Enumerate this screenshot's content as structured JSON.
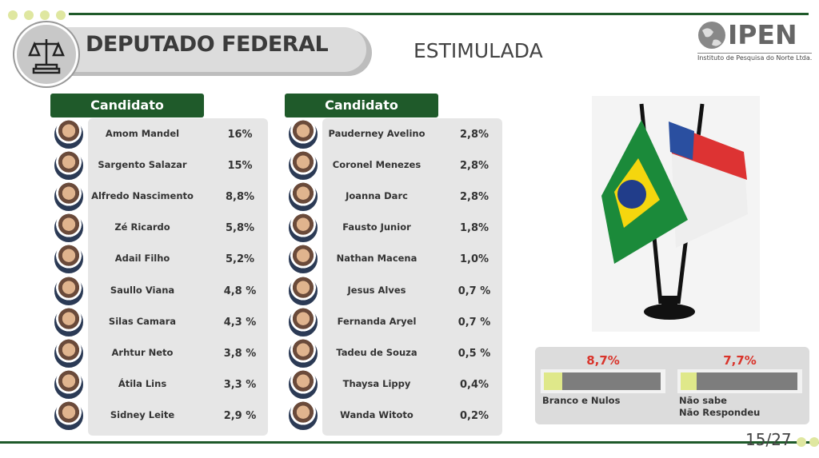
{
  "header": {
    "title": "DEPUTADO FEDERAL",
    "subtitle": "ESTIMULADA",
    "logo": "IPEN",
    "logo_caption": "Instituto de Pesquisa do Norte Ltda."
  },
  "tables": [
    {
      "header": "Candidato",
      "rows": [
        [
          "Amom Mandel",
          "16%"
        ],
        [
          "Sargento Salazar",
          "15%"
        ],
        [
          "Alfredo Nascimento",
          "8,8%"
        ],
        [
          "Zé Ricardo",
          "5,8%"
        ],
        [
          "Adail Filho",
          "5,2%"
        ],
        [
          "Saullo Viana",
          "4,8 %"
        ],
        [
          "Silas Camara",
          "4,3 %"
        ],
        [
          "Arhtur Neto",
          "3,8 %"
        ],
        [
          "Átila Lins",
          "3,3 %"
        ],
        [
          "Sidney Leite",
          "2,9 %"
        ]
      ]
    },
    {
      "header": "Candidato",
      "rows": [
        [
          "Pauderney Avelino",
          "2,8%"
        ],
        [
          "Coronel Menezes",
          "2,8%"
        ],
        [
          "Joanna Darc",
          "2,8%"
        ],
        [
          "Fausto Junior",
          "1,8%"
        ],
        [
          "Nathan Macena",
          "1,0%"
        ],
        [
          "Jesus Alves",
          "0,7 %"
        ],
        [
          "Fernanda Aryel",
          "0,7 %"
        ],
        [
          "Tadeu de Souza",
          "0,5 %"
        ],
        [
          "Thaysa Lippy",
          "0,4%"
        ],
        [
          "Wanda Witoto",
          "0,2%"
        ]
      ]
    }
  ],
  "summary": [
    {
      "value": 8.7,
      "label": "8,7%",
      "names": [
        "Branco e Nulos"
      ]
    },
    {
      "value": 7.7,
      "label": "7,7%",
      "names": [
        "Não sabe",
        "Não Respondeu"
      ]
    }
  ],
  "page": "15/27"
}
